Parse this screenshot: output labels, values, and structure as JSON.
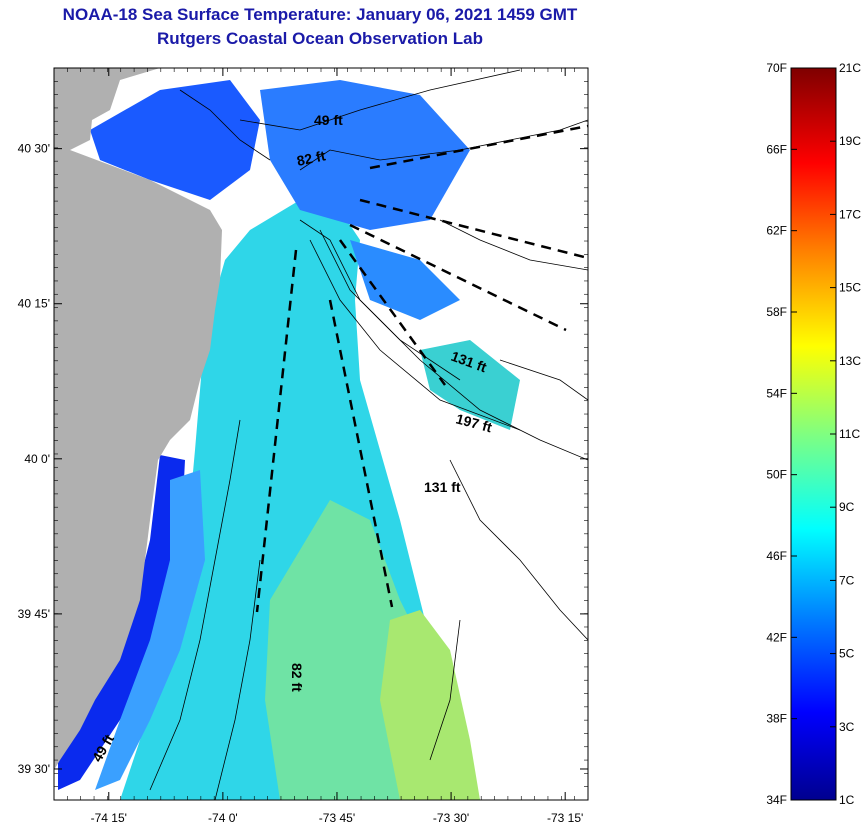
{
  "header": {
    "title": "NOAA-18 Sea Surface Temperature:  January 06, 2021 1459 GMT",
    "subtitle": "Rutgers Coastal Ocean Observation Lab"
  },
  "map": {
    "lat_ticks": [
      {
        "label": "40 30'",
        "value": 40.5
      },
      {
        "label": "40 15'",
        "value": 40.25
      },
      {
        "label": "40 0'",
        "value": 40.0
      },
      {
        "label": "39 45'",
        "value": 39.75
      },
      {
        "label": "39 30'",
        "value": 39.5
      }
    ],
    "lon_ticks": [
      {
        "label": "-74 15'",
        "value": -74.25
      },
      {
        "label": "-74 0'",
        "value": -74.0
      },
      {
        "label": "-73 45'",
        "value": -73.75
      },
      {
        "label": "-73 30'",
        "value": -73.5
      },
      {
        "label": "-73 15'",
        "value": -73.25
      }
    ],
    "depth_labels": [
      "49 ft",
      "82 ft",
      "131 ft",
      "197 ft",
      "131 ft",
      "82 ft",
      "49 ft"
    ]
  },
  "colorbar": {
    "fahrenheit_labels": [
      "70F",
      "66F",
      "62F",
      "58F",
      "54F",
      "50F",
      "46F",
      "42F",
      "38F",
      "34F"
    ],
    "celsius_labels": [
      "21C",
      "19C",
      "17C",
      "15C",
      "13C",
      "11C",
      "9C",
      "7C",
      "5C",
      "3C",
      "1C"
    ],
    "colors": [
      "#7f0000",
      "#ff0000",
      "#ff8000",
      "#ffff00",
      "#80ff80",
      "#00ffff",
      "#0080ff",
      "#0000ff",
      "#00008f"
    ]
  },
  "colors": {
    "title": "#1a1aa8",
    "land": "#b0b0b0",
    "no_data": "#ffffff"
  }
}
